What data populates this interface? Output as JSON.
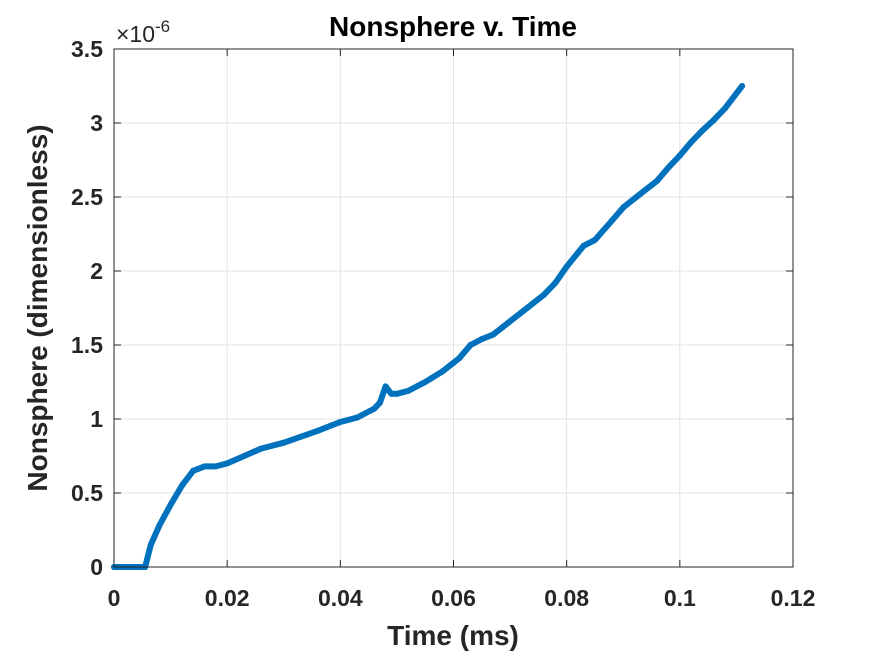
{
  "chart_data": {
    "type": "line",
    "title": "Nonsphere v. Time",
    "xlabel": "Time (ms)",
    "ylabel": "Nonsphere (dimensionless)",
    "y_exponent_label": "×10",
    "y_exponent_power": "-6",
    "xlim": [
      0,
      0.12
    ],
    "ylim": [
      0,
      3.5
    ],
    "x_ticks": [
      0,
      0.02,
      0.04,
      0.06,
      0.08,
      0.1,
      0.12
    ],
    "x_tick_labels": [
      "0",
      "0.02",
      "0.04",
      "0.06",
      "0.08",
      "0.1",
      "0.12"
    ],
    "y_ticks": [
      0,
      0.5,
      1,
      1.5,
      2,
      2.5,
      3,
      3.5
    ],
    "y_tick_labels": [
      "0",
      "0.5",
      "1",
      "1.5",
      "2",
      "2.5",
      "3",
      "3.5"
    ],
    "grid": true,
    "line_color": "#0072BD",
    "series": [
      {
        "x": [
          0,
          0.002,
          0.004,
          0.0055,
          0.0065,
          0.008,
          0.01,
          0.012,
          0.014,
          0.016,
          0.018,
          0.02,
          0.023,
          0.026,
          0.03,
          0.033,
          0.036,
          0.04,
          0.043,
          0.046,
          0.047,
          0.048,
          0.049,
          0.05,
          0.052,
          0.055,
          0.058,
          0.061,
          0.063,
          0.065,
          0.067,
          0.07,
          0.073,
          0.076,
          0.078,
          0.08,
          0.083,
          0.085,
          0.088,
          0.09,
          0.093,
          0.096,
          0.098,
          0.1,
          0.102,
          0.104,
          0.106,
          0.108,
          0.11,
          0.111
        ],
        "y": [
          0,
          0,
          0,
          0,
          0.15,
          0.28,
          0.42,
          0.55,
          0.65,
          0.68,
          0.68,
          0.7,
          0.75,
          0.8,
          0.84,
          0.88,
          0.92,
          0.98,
          1.01,
          1.07,
          1.11,
          1.22,
          1.17,
          1.17,
          1.19,
          1.25,
          1.32,
          1.41,
          1.5,
          1.54,
          1.57,
          1.66,
          1.75,
          1.84,
          1.92,
          2.03,
          2.17,
          2.21,
          2.34,
          2.43,
          2.52,
          2.61,
          2.7,
          2.78,
          2.87,
          2.95,
          3.02,
          3.1,
          3.2,
          3.25
        ]
      }
    ]
  }
}
